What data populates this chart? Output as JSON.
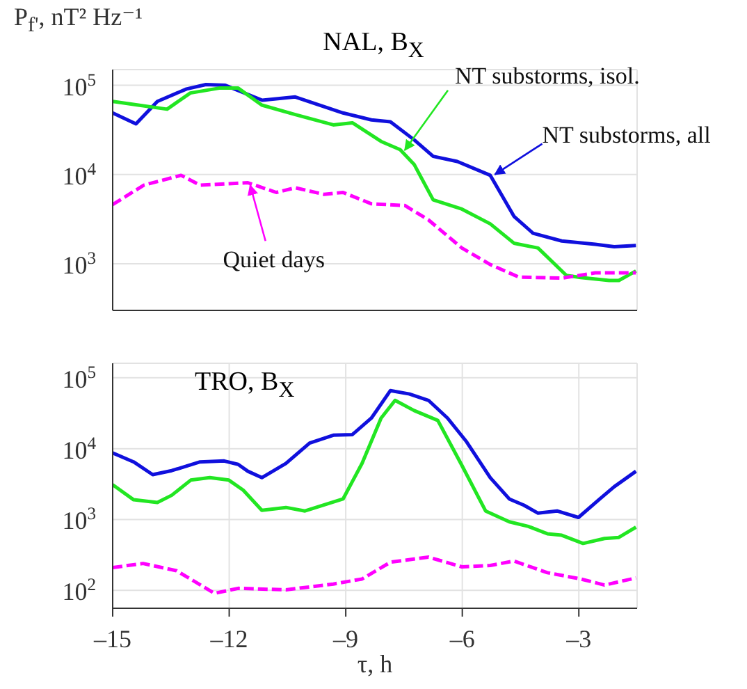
{
  "chart_data": [
    {
      "type": "line",
      "title": "NAL, B$_{X}$",
      "ylabel": "P$_{f'}$, nT² Hz⁻¹",
      "log": true,
      "grid": true,
      "tick_labels": "y",
      "xlim": [
        -15,
        -1.5
      ],
      "xticks": [
        {
          "value": -15,
          "label": null
        },
        {
          "value": -12,
          "label": null
        },
        {
          "value": -9,
          "label": null
        },
        {
          "value": -6,
          "label": null
        },
        {
          "value": -3,
          "label": null
        }
      ],
      "ylim": [
        300,
        150000
      ],
      "yticks": [
        {
          "value": 1000,
          "label": "10$^{3}$"
        },
        {
          "value": 10000,
          "label": "10$^{4}$"
        },
        {
          "value": 100000,
          "label": "10$^{5}$"
        }
      ],
      "series": [
        {
          "color": "#1010dd",
          "x": [
            -15,
            -14.4,
            -13.85,
            -13.1,
            -12.6,
            -12.1,
            -11.15,
            -10.3,
            -9.07,
            -8.34,
            -7.85,
            -7.24,
            -6.75,
            -6.13,
            -5.28,
            -4.67,
            -4.18,
            -3.44,
            -2.58,
            -2.09,
            -1.53
          ],
          "values": [
            49000,
            37000,
            66000,
            91000,
            102000,
            100000,
            68000,
            74000,
            49000,
            41000,
            39000,
            24500,
            16000,
            14000,
            9800,
            3400,
            2200,
            1800,
            1650,
            1550,
            1600
          ]
        },
        {
          "color": "#22e622",
          "x": [
            -15,
            -14.34,
            -13.6,
            -13.0,
            -12.26,
            -11.77,
            -11.16,
            -10.3,
            -9.32,
            -8.83,
            -8.09,
            -7.6,
            -7.24,
            -6.75,
            -6.01,
            -5.28,
            -4.67,
            -4.05,
            -3.32,
            -2.95,
            -2.22,
            -1.97,
            -1.53
          ],
          "values": [
            66000,
            60000,
            54000,
            82000,
            93000,
            93000,
            60000,
            47000,
            36000,
            38000,
            23500,
            19000,
            13000,
            5200,
            4100,
            2800,
            1700,
            1500,
            740,
            700,
            650,
            650,
            830
          ]
        },
        {
          "color": "#ff00ff",
          "line_style": "dashed",
          "x": [
            -15,
            -14.2,
            -13.24,
            -12.75,
            -11.52,
            -10.79,
            -10.3,
            -9.56,
            -9.07,
            -8.34,
            -7.48,
            -6.87,
            -6.01,
            -5.28,
            -4.55,
            -3.44,
            -2.58,
            -1.53
          ],
          "values": [
            4600,
            7600,
            9800,
            7600,
            8100,
            6300,
            7100,
            6000,
            6300,
            4700,
            4500,
            3100,
            1500,
            980,
            710,
            690,
            790,
            790
          ]
        }
      ],
      "annotations": [
        {
          "text": "NT substorms, all",
          "x": -5.16,
          "y": 10200
        },
        {
          "text": "NT substorms, isol.",
          "x": -7.48,
          "y": 19000
        },
        {
          "text": "Quiet days",
          "x": -11.46,
          "y": 7700
        }
      ]
    },
    {
      "type": "line",
      "title": "TRO, B$_{X}$",
      "xlabel": "τ, h",
      "log": true,
      "grid": true,
      "xlim": [
        -15,
        -1.5
      ],
      "xticks": [
        {
          "value": -15,
          "label": "–15"
        },
        {
          "value": -12,
          "label": "–12"
        },
        {
          "value": -9,
          "label": "–9"
        },
        {
          "value": -6,
          "label": "–6"
        },
        {
          "value": -3,
          "label": "–3"
        }
      ],
      "ylim": [
        56,
        160000
      ],
      "yticks": [
        {
          "value": 100,
          "label": "10$^{2}$"
        },
        {
          "value": 1000,
          "label": "10$^{3}$"
        },
        {
          "value": 10000,
          "label": "10$^{4}$"
        },
        {
          "value": 100000,
          "label": "10$^{5}$"
        }
      ],
      "series": [
        {
          "color": "#1010dd",
          "x": [
            -15,
            -14.46,
            -13.97,
            -13.48,
            -12.75,
            -12.13,
            -11.77,
            -11.52,
            -11.16,
            -10.54,
            -9.93,
            -9.32,
            -8.83,
            -8.34,
            -7.85,
            -7.36,
            -6.87,
            -6.38,
            -5.89,
            -5.28,
            -4.79,
            -4.42,
            -4.05,
            -3.56,
            -3.01,
            -2.46,
            -2.09,
            -1.53
          ],
          "values": [
            8700,
            6500,
            4300,
            4900,
            6500,
            6700,
            6000,
            4800,
            3900,
            6200,
            12000,
            15500,
            15800,
            27000,
            66000,
            59000,
            48000,
            27000,
            12500,
            3900,
            1950,
            1600,
            1230,
            1320,
            1070,
            1950,
            2900,
            4800
          ]
        },
        {
          "color": "#22e622",
          "x": [
            -15,
            -14.46,
            -13.85,
            -13.48,
            -12.99,
            -12.5,
            -12.01,
            -11.64,
            -11.16,
            -10.54,
            -10.05,
            -9.07,
            -8.58,
            -8.09,
            -7.73,
            -7.24,
            -6.63,
            -6.01,
            -5.4,
            -4.79,
            -4.3,
            -3.81,
            -3.44,
            -2.89,
            -2.34,
            -1.97,
            -1.53
          ],
          "values": [
            3100,
            1900,
            1740,
            2200,
            3600,
            3900,
            3600,
            2600,
            1350,
            1480,
            1320,
            1950,
            6200,
            27000,
            48000,
            34500,
            25000,
            5800,
            1320,
            930,
            800,
            630,
            600,
            460,
            540,
            560,
            780
          ]
        },
        {
          "color": "#ff00ff",
          "line_style": "dashed",
          "x": [
            -15,
            -14.22,
            -13.36,
            -12.38,
            -11.77,
            -10.54,
            -9.32,
            -8.58,
            -7.85,
            -6.87,
            -6.01,
            -5.28,
            -4.67,
            -3.81,
            -2.95,
            -2.34,
            -1.53
          ],
          "values": [
            210,
            240,
            190,
            91,
            107,
            102,
            123,
            145,
            250,
            295,
            215,
            225,
            260,
            178,
            145,
            119,
            150
          ]
        }
      ]
    }
  ]
}
